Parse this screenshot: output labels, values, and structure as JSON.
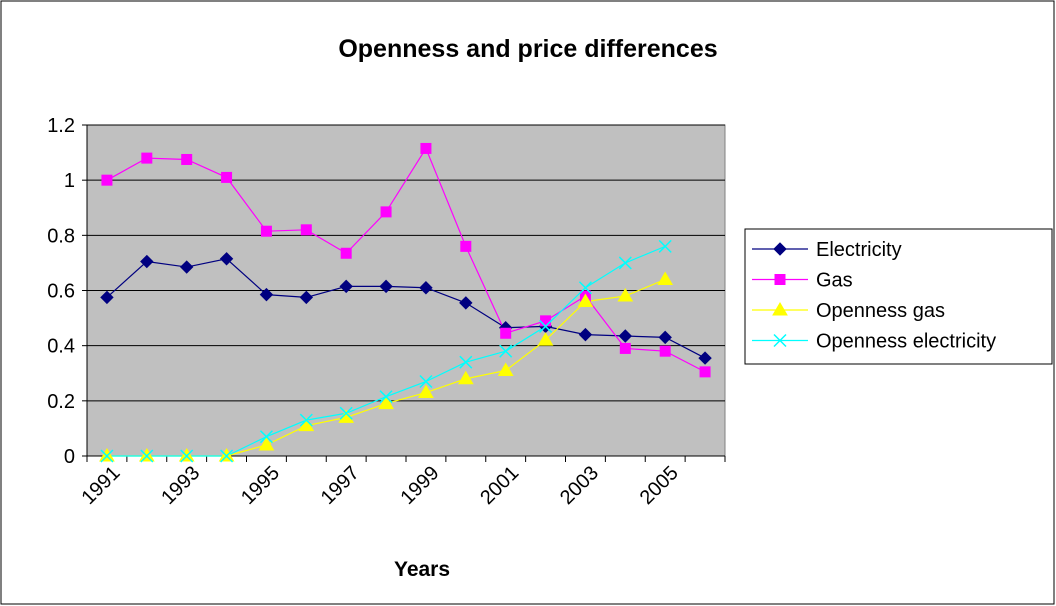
{
  "chart_data": {
    "type": "line",
    "title": "Openness and price differences",
    "x_label": "Years",
    "categories": [
      "1991",
      null,
      "1993",
      null,
      "1995",
      null,
      "1997",
      null,
      "1999",
      null,
      "2001",
      null,
      "2003",
      null,
      "2005",
      null
    ],
    "series": [
      {
        "name": "Electricity",
        "color": "#000080",
        "marker": "diamond",
        "values": [
          0.575,
          0.705,
          0.685,
          0.715,
          0.585,
          0.575,
          0.615,
          0.615,
          0.61,
          0.555,
          0.465,
          0.47,
          0.44,
          0.435,
          0.43,
          0.355
        ]
      },
      {
        "name": "Gas",
        "color": "#FF00FF",
        "marker": "square",
        "values": [
          1.0,
          1.08,
          1.075,
          1.01,
          0.815,
          0.82,
          0.735,
          0.885,
          1.115,
          0.76,
          0.445,
          0.49,
          0.58,
          0.39,
          0.38,
          0.305
        ]
      },
      {
        "name": "Openness gas",
        "color": "#FFFF00",
        "marker": "triangle",
        "values": [
          0,
          0,
          0,
          0,
          0.04,
          0.11,
          0.14,
          0.19,
          0.23,
          0.28,
          0.31,
          0.42,
          0.56,
          0.58,
          0.64,
          null
        ]
      },
      {
        "name": "Openness electricity",
        "color": "#00FFFF",
        "marker": "x",
        "values": [
          0,
          0,
          0,
          0,
          0.07,
          0.13,
          0.155,
          0.215,
          0.27,
          0.34,
          0.38,
          0.47,
          0.61,
          0.7,
          0.76,
          null
        ]
      }
    ],
    "ylim": [
      0,
      1.2
    ],
    "yticks": [
      0,
      0.2,
      0.4,
      0.6,
      0.8,
      1,
      1.2
    ],
    "grid": true,
    "legend": "right",
    "plot_background": "#C0C0C0"
  }
}
